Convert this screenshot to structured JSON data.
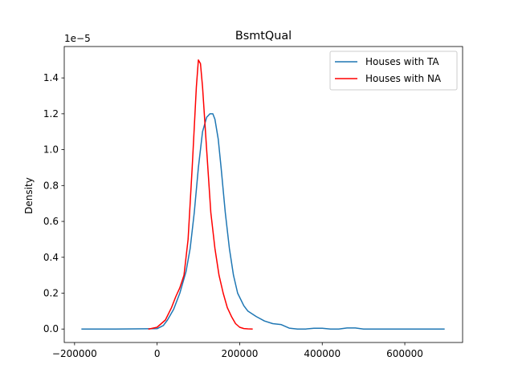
{
  "chart_data": {
    "type": "line",
    "title": "BsmtQual",
    "xlabel": "",
    "ylabel": "Density",
    "y_offset_text": "1e−5",
    "xlim": [
      -225000,
      740000
    ],
    "ylim": [
      -0.075,
      1.575
    ],
    "x_ticks": [
      -200000,
      0,
      200000,
      400000,
      600000
    ],
    "x_tick_labels": [
      "−200000",
      "0",
      "200000",
      "400000",
      "600000"
    ],
    "y_ticks": [
      0.0,
      0.2,
      0.4,
      0.6,
      0.8,
      1.0,
      1.2,
      1.4
    ],
    "y_tick_labels": [
      "0.0",
      "0.2",
      "0.4",
      "0.6",
      "0.8",
      "1.0",
      "1.2",
      "1.4"
    ],
    "grid": false,
    "legend_position": "top-right",
    "series": [
      {
        "name": "Houses with TA",
        "color": "#1f77b4",
        "x": [
          -182000,
          -100000,
          0,
          15000,
          25000,
          40000,
          55000,
          70000,
          80000,
          90000,
          100000,
          110000,
          120000,
          128000,
          135000,
          140000,
          148000,
          155000,
          165000,
          175000,
          185000,
          195000,
          210000,
          220000,
          240000,
          260000,
          280000,
          300000,
          320000,
          340000,
          360000,
          380000,
          400000,
          420000,
          440000,
          460000,
          480000,
          500000,
          550000,
          600000,
          650000,
          695000
        ],
        "y": [
          0.0,
          0.0,
          0.002,
          0.02,
          0.05,
          0.11,
          0.2,
          0.32,
          0.45,
          0.65,
          0.9,
          1.1,
          1.18,
          1.2,
          1.2,
          1.17,
          1.06,
          0.9,
          0.65,
          0.45,
          0.3,
          0.2,
          0.13,
          0.1,
          0.07,
          0.045,
          0.03,
          0.025,
          0.005,
          0.0,
          0.0,
          0.004,
          0.004,
          0.0,
          0.0,
          0.006,
          0.006,
          0.0,
          0.0,
          0.0,
          0.0,
          0.0
        ]
      },
      {
        "name": "Houses with NA",
        "color": "#ff0000",
        "x": [
          -20000,
          0,
          20000,
          35000,
          45000,
          55000,
          65000,
          75000,
          85000,
          95000,
          100000,
          105000,
          110000,
          120000,
          130000,
          140000,
          150000,
          160000,
          170000,
          180000,
          190000,
          200000,
          210000,
          220000,
          230000
        ],
        "y": [
          0.0,
          0.01,
          0.05,
          0.12,
          0.18,
          0.23,
          0.3,
          0.5,
          0.9,
          1.35,
          1.5,
          1.48,
          1.35,
          1.0,
          0.65,
          0.45,
          0.3,
          0.2,
          0.12,
          0.07,
          0.03,
          0.01,
          0.003,
          0.001,
          0.0
        ]
      }
    ]
  }
}
